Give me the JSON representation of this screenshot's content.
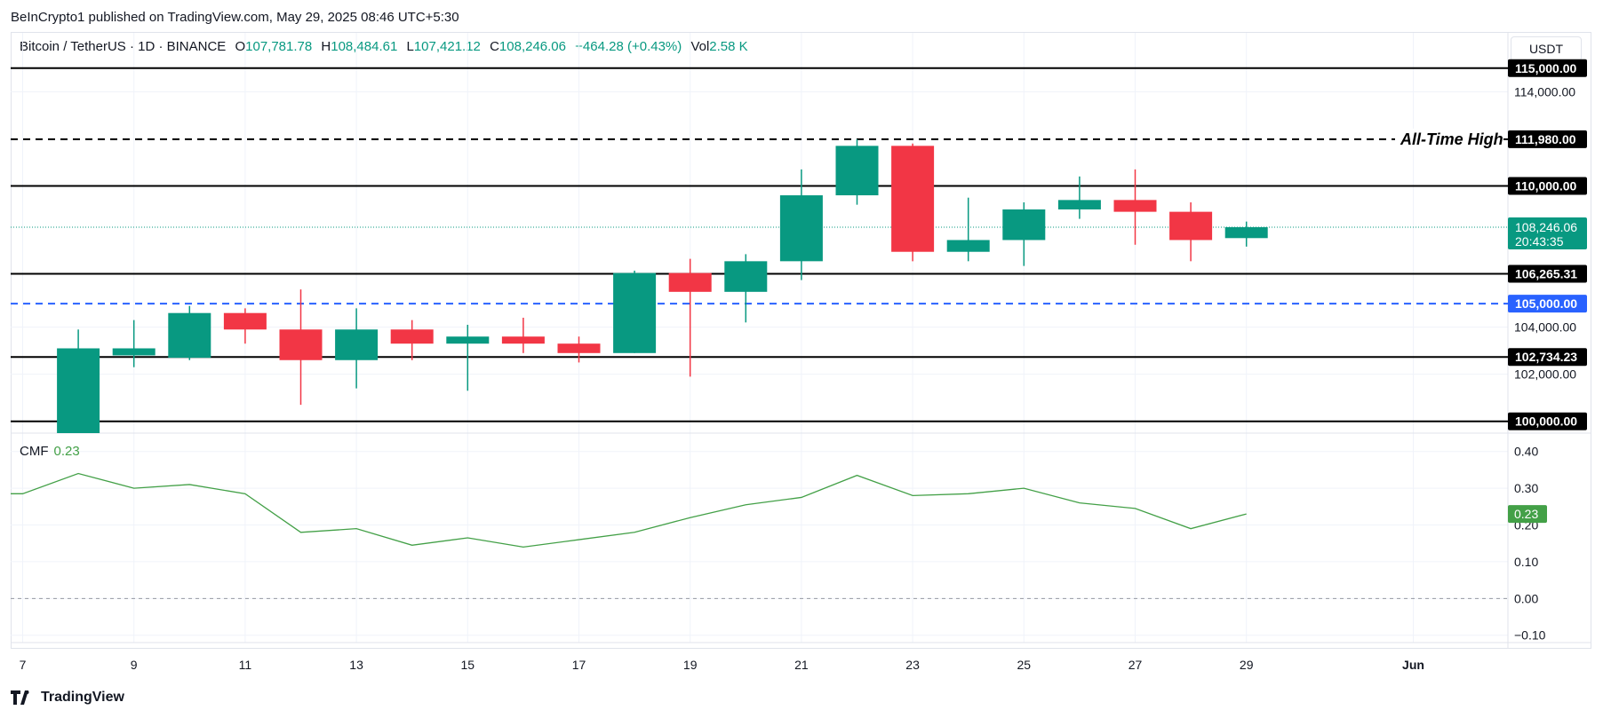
{
  "publisher": "BeInCrypto1 published on TradingView.com, May 29, 2025 08:46 UTC+5:30",
  "legend": {
    "symbol": "Bitcoin / TetherUS · 1D · BINANCE",
    "o_label": "O",
    "o_value": "107,781.78",
    "h_label": "H",
    "h_value": "108,484.61",
    "l_label": "L",
    "l_value": "107,421.12",
    "c_label": "C",
    "c_value": "108,246.06",
    "change": "+464.28 (+0.43%)",
    "vol_label": "Vol",
    "vol_value": "2.58 K"
  },
  "currency": "USDT",
  "brand": "TradingView",
  "colors": {
    "up": "#089981",
    "down": "#f23645",
    "cmf": "#43a047",
    "blue": "#2962ff"
  },
  "chart_data": [
    {
      "type": "candlestick",
      "title": "Bitcoin / TetherUS · 1D · BINANCE",
      "ylim": [
        99500,
        116500
      ],
      "ylabel_ticks": [
        "114,000.00",
        "104,000.00",
        "102,000.00"
      ],
      "ytick_values": [
        114000,
        104000,
        102000
      ],
      "x_ticks": [
        {
          "label": "7",
          "day": 7
        },
        {
          "label": "9",
          "day": 9
        },
        {
          "label": "11",
          "day": 11
        },
        {
          "label": "13",
          "day": 13
        },
        {
          "label": "15",
          "day": 15
        },
        {
          "label": "17",
          "day": 17
        },
        {
          "label": "19",
          "day": 19
        },
        {
          "label": "21",
          "day": 21
        },
        {
          "label": "23",
          "day": 23
        },
        {
          "label": "25",
          "day": 25
        },
        {
          "label": "27",
          "day": 27
        },
        {
          "label": "29",
          "day": 29
        },
        {
          "label": "Jun",
          "day": 32
        }
      ],
      "candles": [
        {
          "day": 8,
          "o": 99500,
          "h": 103900,
          "l": 99500,
          "c": 103100
        },
        {
          "day": 9,
          "o": 102800,
          "h": 104300,
          "l": 102300,
          "c": 103100
        },
        {
          "day": 10,
          "o": 102700,
          "h": 104900,
          "l": 102600,
          "c": 104600
        },
        {
          "day": 11,
          "o": 104600,
          "h": 104800,
          "l": 103300,
          "c": 103900
        },
        {
          "day": 12,
          "o": 103900,
          "h": 105600,
          "l": 100700,
          "c": 102600
        },
        {
          "day": 13,
          "o": 102600,
          "h": 104800,
          "l": 101400,
          "c": 103900
        },
        {
          "day": 14,
          "o": 103900,
          "h": 104300,
          "l": 102600,
          "c": 103300
        },
        {
          "day": 15,
          "o": 103300,
          "h": 104100,
          "l": 101300,
          "c": 103600
        },
        {
          "day": 16,
          "o": 103600,
          "h": 104400,
          "l": 102900,
          "c": 103300
        },
        {
          "day": 17,
          "o": 103300,
          "h": 103600,
          "l": 102500,
          "c": 102900
        },
        {
          "day": 18,
          "o": 102900,
          "h": 106400,
          "l": 102900,
          "c": 106300
        },
        {
          "day": 19,
          "o": 106300,
          "h": 106900,
          "l": 101900,
          "c": 105500
        },
        {
          "day": 20,
          "o": 105500,
          "h": 107100,
          "l": 104200,
          "c": 106800
        },
        {
          "day": 21,
          "o": 106800,
          "h": 110700,
          "l": 106000,
          "c": 109600
        },
        {
          "day": 22,
          "o": 109600,
          "h": 111980,
          "l": 109200,
          "c": 111700
        },
        {
          "day": 23,
          "o": 111700,
          "h": 111800,
          "l": 106800,
          "c": 107200
        },
        {
          "day": 24,
          "o": 107200,
          "h": 109500,
          "l": 106800,
          "c": 107700
        },
        {
          "day": 25,
          "o": 107700,
          "h": 109300,
          "l": 106600,
          "c": 109000
        },
        {
          "day": 26,
          "o": 109000,
          "h": 110400,
          "l": 108600,
          "c": 109400
        },
        {
          "day": 27,
          "o": 109400,
          "h": 110700,
          "l": 107500,
          "c": 108900
        },
        {
          "day": 28,
          "o": 108900,
          "h": 109300,
          "l": 106800,
          "c": 107700
        },
        {
          "day": 29,
          "o": 107781.78,
          "h": 108484.61,
          "l": 107421.12,
          "c": 108246.06
        }
      ],
      "levels": [
        {
          "value": 115000,
          "label": "115,000.00",
          "style": "solid",
          "color": "#000000",
          "bg": "#000000"
        },
        {
          "value": 111980,
          "label": "111,980.00",
          "style": "dashed",
          "color": "#000000",
          "bg": "#000000",
          "annotation": "All-Time High"
        },
        {
          "value": 110000,
          "label": "110,000.00",
          "style": "solid",
          "color": "#000000",
          "bg": "#000000"
        },
        {
          "value": 106265.31,
          "label": "106,265.31",
          "style": "solid",
          "color": "#000000",
          "bg": "#000000"
        },
        {
          "value": 105000,
          "label": "105,000.00",
          "style": "dashed",
          "color": "#2962ff",
          "bg": "#2962ff"
        },
        {
          "value": 102734.23,
          "label": "102,734.23",
          "style": "solid",
          "color": "#000000",
          "bg": "#000000"
        },
        {
          "value": 100000,
          "label": "100,000.00",
          "style": "solid",
          "color": "#000000",
          "bg": "#000000"
        }
      ],
      "last_price": {
        "value": 108246.06,
        "label": "108,246.06",
        "countdown": "20:43:35"
      }
    },
    {
      "type": "line",
      "title": "CMF",
      "value_label": "0.23",
      "ylim": [
        -0.12,
        0.45
      ],
      "ytick_labels": [
        "0.40",
        "0.30",
        "0.20",
        "0.10",
        "0.00",
        "−0.10"
      ],
      "ytick_values": [
        0.4,
        0.3,
        0.2,
        0.1,
        0.0,
        -0.1
      ],
      "x": [
        6.5,
        7,
        8,
        9,
        10,
        11,
        12,
        13,
        14,
        15,
        16,
        17,
        18,
        19,
        20,
        21,
        22,
        23,
        24,
        25,
        26,
        27,
        28,
        29
      ],
      "y": [
        0.285,
        0.285,
        0.34,
        0.3,
        0.31,
        0.285,
        0.18,
        0.19,
        0.145,
        0.165,
        0.14,
        0.16,
        0.18,
        0.22,
        0.255,
        0.275,
        0.335,
        0.28,
        0.285,
        0.3,
        0.26,
        0.245,
        0.19,
        0.23
      ],
      "zero_line": 0
    }
  ]
}
